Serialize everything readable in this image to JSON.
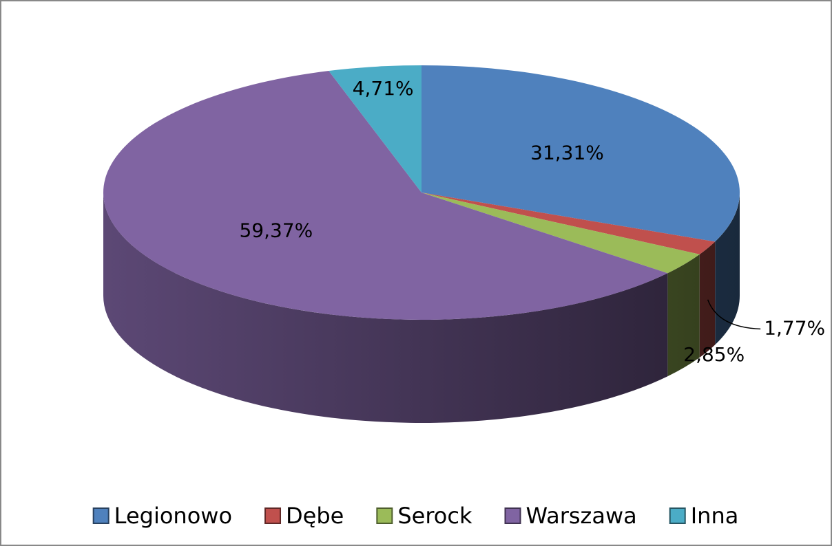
{
  "chart_data": {
    "type": "pie",
    "categories": [
      "Legionowo",
      "Dębe",
      "Serock",
      "Warszawa",
      "Inna"
    ],
    "values": [
      31.31,
      1.77,
      2.85,
      59.37,
      4.71
    ],
    "value_labels": [
      "31,31%",
      "1,77%",
      "2,85%",
      "59,37%",
      "4,71%"
    ],
    "colors": [
      "#4f81bd",
      "#c0504d",
      "#9bbb59",
      "#8064a2",
      "#4bacc6"
    ],
    "legend": "bottom"
  }
}
